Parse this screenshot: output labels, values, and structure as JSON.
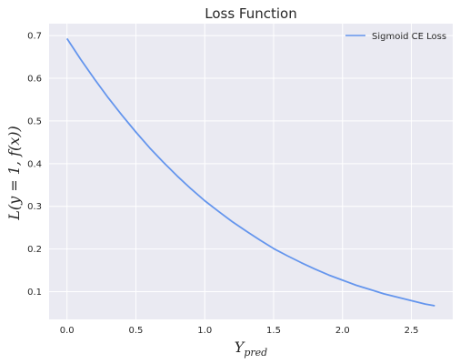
{
  "chart_data": {
    "type": "line",
    "title": "Loss Function",
    "xlabel": "Y_pred",
    "ylabel": "L(y = 1, f(x))",
    "xlim": [
      -0.13,
      2.8
    ],
    "ylim": [
      0.035,
      0.728
    ],
    "x_ticks": [
      0.0,
      0.5,
      1.0,
      1.5,
      2.0,
      2.5
    ],
    "x_tick_labels": [
      "0.0",
      "0.5",
      "1.0",
      "1.5",
      "2.0",
      "2.5"
    ],
    "y_ticks": [
      0.1,
      0.2,
      0.3,
      0.4,
      0.5,
      0.6,
      0.7
    ],
    "y_tick_labels": [
      "0.1",
      "0.2",
      "0.3",
      "0.4",
      "0.5",
      "0.6",
      "0.7"
    ],
    "grid": true,
    "legend_position": "top-right",
    "series": [
      {
        "name": "Sigmoid CE Loss",
        "color": "#6495ed",
        "x": [
          0.0,
          0.1,
          0.2,
          0.3,
          0.4,
          0.5,
          0.6,
          0.7,
          0.8,
          0.9,
          1.0,
          1.1,
          1.2,
          1.3,
          1.4,
          1.5,
          1.6,
          1.7,
          1.8,
          1.9,
          2.0,
          2.1,
          2.2,
          2.3,
          2.4,
          2.5,
          2.6,
          2.67
        ],
        "y": [
          0.693,
          0.644,
          0.598,
          0.554,
          0.513,
          0.474,
          0.437,
          0.403,
          0.371,
          0.341,
          0.313,
          0.288,
          0.264,
          0.242,
          0.221,
          0.201,
          0.184,
          0.168,
          0.153,
          0.139,
          0.127,
          0.115,
          0.105,
          0.095,
          0.087,
          0.079,
          0.071,
          0.067
        ]
      }
    ]
  },
  "colors": {
    "plot_background": "#eaeaf2",
    "grid": "#ffffff",
    "text": "#262626"
  }
}
